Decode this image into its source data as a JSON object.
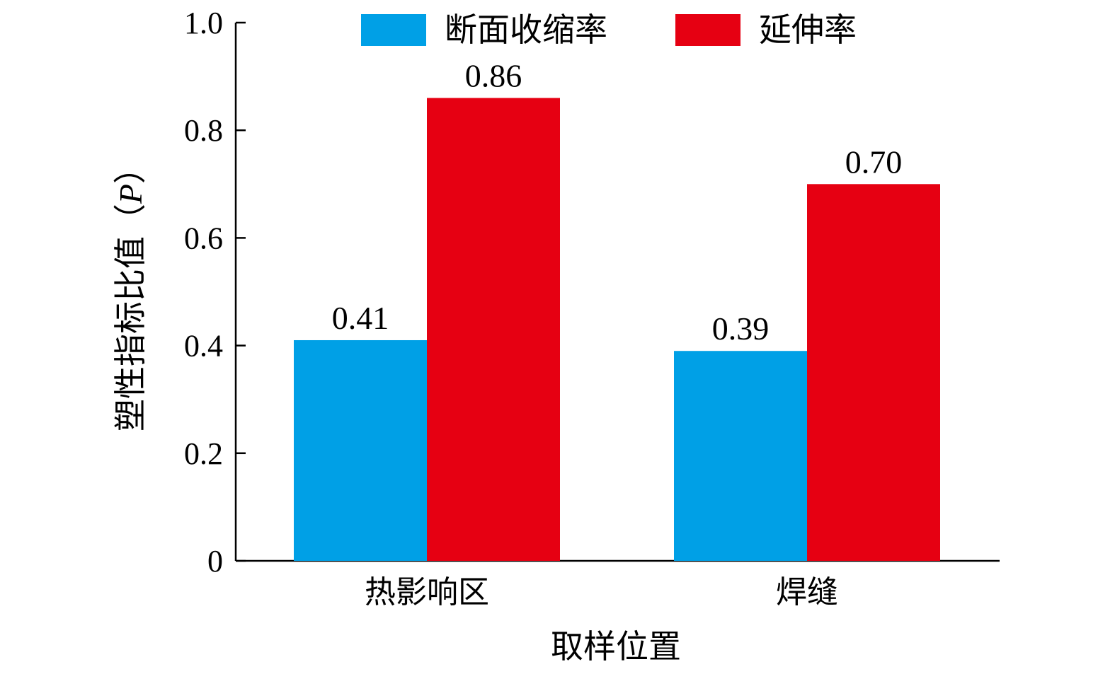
{
  "chart_data": {
    "type": "bar",
    "categories": [
      "热影响区",
      "焊缝"
    ],
    "series": [
      {
        "name": "断面收缩率",
        "values": [
          0.41,
          0.39
        ],
        "color": "#00a0e6"
      },
      {
        "name": "延伸率",
        "values": [
          0.86,
          0.7
        ],
        "color": "#e60012"
      }
    ],
    "value_labels": [
      [
        "0.41",
        "0.39"
      ],
      [
        "0.86",
        "0.70"
      ]
    ],
    "xlabel": "取样位置",
    "ylabel": {
      "prefix": "塑性指标比值（",
      "symbol": "P",
      "suffix": "）"
    },
    "ylim": [
      0,
      1.0
    ],
    "yticks": [
      0,
      0.2,
      0.4,
      0.6,
      0.8,
      1.0
    ],
    "ytick_labels": [
      "0",
      "0.2",
      "0.4",
      "0.6",
      "0.8",
      "1.0"
    ],
    "legend_position": "top",
    "grid": false
  }
}
